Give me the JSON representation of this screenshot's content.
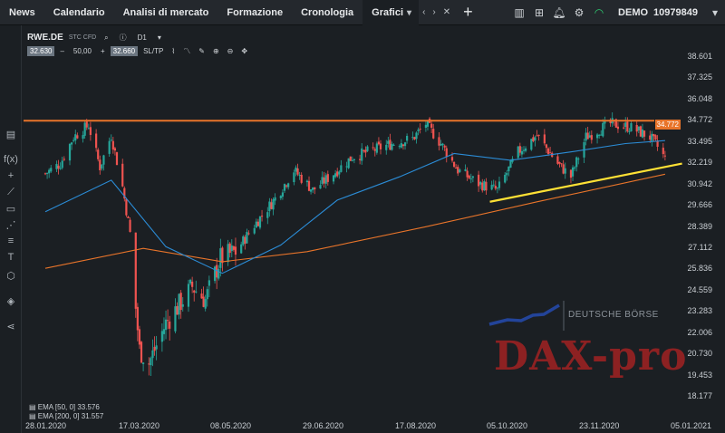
{
  "topbar": {
    "tabs": [
      "News",
      "Calendario",
      "Analisi di mercato",
      "Formazione",
      "Cronologia"
    ],
    "active_tab": "Grafici",
    "account_mode": "DEMO",
    "account_number": "10979849"
  },
  "chart_toolbar": {
    "symbol": "RWE.DE",
    "symbol_sub": "STC CFD",
    "timeframe": "D1",
    "bid": "32.630",
    "quantity": "50,00",
    "ask": "32.660",
    "sltp": "SL/TP"
  },
  "y_axis": [
    "38.601",
    "37.325",
    "36.048",
    "34.772",
    "33.495",
    "32.219",
    "30.942",
    "29.666",
    "28.389",
    "27.112",
    "25.836",
    "24.559",
    "23.283",
    "22.006",
    "20.730",
    "19.453",
    "18.177"
  ],
  "x_axis": [
    "28.01.2020",
    "17.03.2020",
    "08.05.2020",
    "29.06.2020",
    "17.08.2020",
    "05.10.2020",
    "23.11.2020",
    "05.01.2021"
  ],
  "price_tag": "34.772",
  "legend": {
    "ema50": "EMA [50, 0] 33.576",
    "ema200": "EMA [200, 0] 31.557"
  },
  "watermarks": {
    "deutsche_boerse": "DEUTSCHE BÖRSE",
    "daxpro": "DAX-pro"
  },
  "colors": {
    "up": "#26a69a",
    "down": "#ef5350",
    "ema50": "#2b8cd6",
    "ema200": "#e8742a",
    "resistance": "#e8742a",
    "trendline": "#ffe135"
  },
  "chart_data": {
    "type": "candlestick",
    "symbol": "RWE.DE",
    "timeframe": "D1",
    "ylim": [
      18.177,
      38.601
    ],
    "x_range": [
      "2020-01-28",
      "2021-01-05"
    ],
    "close_path": [
      {
        "date": "2020-01-28",
        "close": 31.6
      },
      {
        "date": "2020-02-05",
        "close": 32.2
      },
      {
        "date": "2020-02-12",
        "close": 33.8
      },
      {
        "date": "2020-02-20",
        "close": 34.5
      },
      {
        "date": "2020-02-26",
        "close": 32.0
      },
      {
        "date": "2020-03-03",
        "close": 33.9
      },
      {
        "date": "2020-03-09",
        "close": 30.8
      },
      {
        "date": "2020-03-13",
        "close": 28.0
      },
      {
        "date": "2020-03-16",
        "close": 23.5
      },
      {
        "date": "2020-03-18",
        "close": 21.0
      },
      {
        "date": "2020-03-23",
        "close": 20.2
      },
      {
        "date": "2020-04-01",
        "close": 22.6
      },
      {
        "date": "2020-04-15",
        "close": 24.8
      },
      {
        "date": "2020-04-22",
        "close": 24.0
      },
      {
        "date": "2020-04-30",
        "close": 26.5
      },
      {
        "date": "2020-05-08",
        "close": 26.9
      },
      {
        "date": "2020-05-18",
        "close": 28.5
      },
      {
        "date": "2020-05-29",
        "close": 30.1
      },
      {
        "date": "2020-06-08",
        "close": 31.8
      },
      {
        "date": "2020-06-18",
        "close": 30.6
      },
      {
        "date": "2020-06-29",
        "close": 31.6
      },
      {
        "date": "2020-07-09",
        "close": 32.6
      },
      {
        "date": "2020-07-20",
        "close": 33.0
      },
      {
        "date": "2020-07-30",
        "close": 33.4
      },
      {
        "date": "2020-08-10",
        "close": 33.7
      },
      {
        "date": "2020-08-17",
        "close": 34.6
      },
      {
        "date": "2020-08-25",
        "close": 33.4
      },
      {
        "date": "2020-09-03",
        "close": 31.8
      },
      {
        "date": "2020-09-14",
        "close": 31.0
      },
      {
        "date": "2020-09-24",
        "close": 30.6
      },
      {
        "date": "2020-10-05",
        "close": 32.9
      },
      {
        "date": "2020-10-15",
        "close": 33.9
      },
      {
        "date": "2020-10-26",
        "close": 32.2
      },
      {
        "date": "2020-11-02",
        "close": 31.4
      },
      {
        "date": "2020-11-10",
        "close": 33.8
      },
      {
        "date": "2020-11-23",
        "close": 34.6
      },
      {
        "date": "2020-12-03",
        "close": 34.4
      },
      {
        "date": "2020-12-14",
        "close": 33.8
      },
      {
        "date": "2020-12-18",
        "close": 33.2
      },
      {
        "date": "2020-12-22",
        "close": 32.5
      }
    ],
    "ema50": [
      {
        "date": "2020-01-28",
        "value": 29.3
      },
      {
        "date": "2020-03-03",
        "value": 31.2
      },
      {
        "date": "2020-04-01",
        "value": 27.2
      },
      {
        "date": "2020-05-01",
        "value": 25.6
      },
      {
        "date": "2020-06-01",
        "value": 27.3
      },
      {
        "date": "2020-07-01",
        "value": 30.0
      },
      {
        "date": "2020-08-03",
        "value": 31.4
      },
      {
        "date": "2020-09-01",
        "value": 32.8
      },
      {
        "date": "2020-10-01",
        "value": 32.4
      },
      {
        "date": "2020-11-02",
        "value": 32.9
      },
      {
        "date": "2020-12-01",
        "value": 33.4
      },
      {
        "date": "2020-12-22",
        "value": 33.58
      }
    ],
    "ema200": [
      {
        "date": "2020-01-28",
        "value": 25.9
      },
      {
        "date": "2020-03-20",
        "value": 27.1
      },
      {
        "date": "2020-05-01",
        "value": 26.3
      },
      {
        "date": "2020-06-15",
        "value": 26.9
      },
      {
        "date": "2020-08-17",
        "value": 28.4
      },
      {
        "date": "2020-10-15",
        "value": 29.9
      },
      {
        "date": "2020-12-22",
        "value": 31.56
      }
    ],
    "resistance_line": {
      "level": 34.772
    },
    "trendline": [
      {
        "date": "2020-09-20",
        "value": 29.9
      },
      {
        "date": "2020-12-31",
        "value": 32.2
      }
    ]
  }
}
